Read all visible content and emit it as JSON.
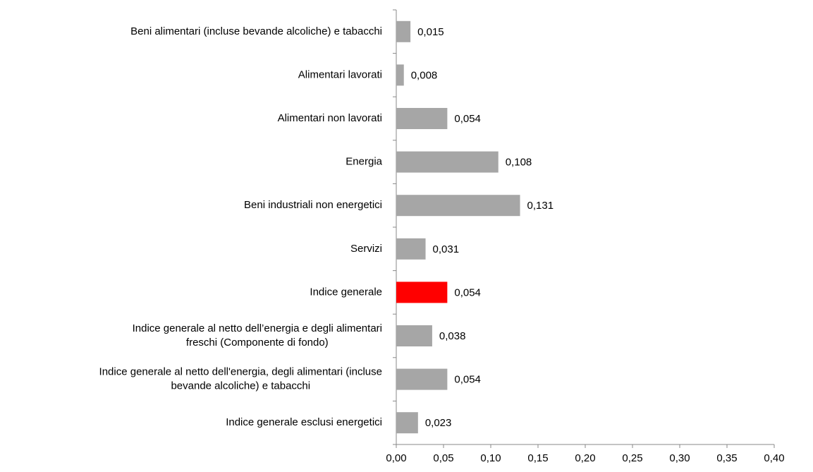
{
  "chart_data": {
    "type": "bar",
    "orientation": "horizontal",
    "categories": [
      [
        "Beni alimentari (incluse bevande alcoliche) e tabacchi"
      ],
      [
        "Alimentari lavorati"
      ],
      [
        "Alimentari non lavorati"
      ],
      [
        "Energia"
      ],
      [
        "Beni industriali non energetici"
      ],
      [
        "Servizi"
      ],
      [
        "Indice generale"
      ],
      [
        "Indice generale  al netto  dell’energia  e degli  alimentari",
        "freschi  (Componente  di fondo)"
      ],
      [
        "Indice generale al netto dell'energia, degli alimentari (incluse",
        "bevande alcoliche) e tabacchi"
      ],
      [
        "Indice generale esclusi energetici"
      ]
    ],
    "values": [
      0.015,
      0.008,
      0.054,
      0.108,
      0.131,
      0.031,
      0.054,
      0.038,
      0.054,
      0.023
    ],
    "value_labels": [
      "0,015",
      "0,008",
      "0,054",
      "0,108",
      "0,131",
      "0,031",
      "0,054",
      "0,038",
      "0,054",
      "0,023"
    ],
    "colors": [
      "#a6a6a6",
      "#a6a6a6",
      "#a6a6a6",
      "#a6a6a6",
      "#a6a6a6",
      "#a6a6a6",
      "#ff0000",
      "#a6a6a6",
      "#a6a6a6",
      "#a6a6a6"
    ],
    "xlim": [
      0,
      0.4
    ],
    "xticks": [
      {
        "value": 0,
        "label": "0,00"
      },
      {
        "value": 0.05,
        "label": "0,05"
      },
      {
        "value": 0.1,
        "label": "0,10"
      },
      {
        "value": 0.15,
        "label": "0,15"
      },
      {
        "value": 0.2,
        "label": "0,20"
      },
      {
        "value": 0.25,
        "label": "0,25"
      },
      {
        "value": 0.3,
        "label": "0,30"
      },
      {
        "value": 0.35,
        "label": "0,35"
      },
      {
        "value": 0.4,
        "label": "0,40"
      }
    ],
    "grid": false
  }
}
